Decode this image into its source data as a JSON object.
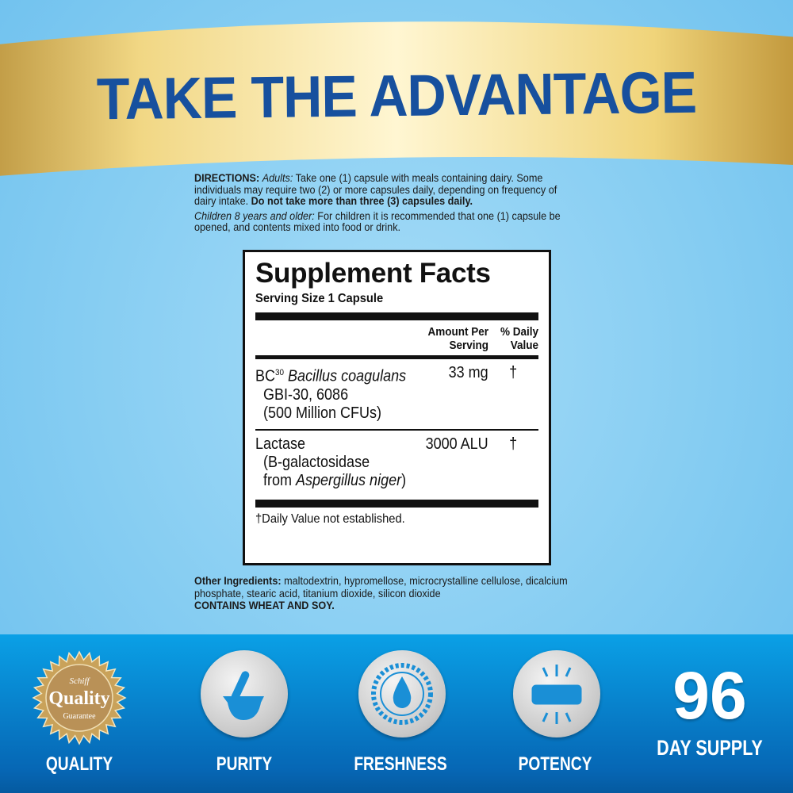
{
  "headline": "TAKE THE ADVANTAGE",
  "directions": {
    "label": "DIRECTIONS:",
    "adults_label": "Adults:",
    "adults_text": " Take one (1) capsule with meals containing dairy. Some individuals may require two (2) or more capsules daily, depending on frequency of dairy intake. ",
    "warning": "Do not take more than three (3) capsules daily.",
    "children_label": "Children 8 years and older:",
    "children_text": " For children it is recommended that one (1) capsule be opened, and contents mixed into food or drink."
  },
  "facts": {
    "title": "Supplement Facts",
    "serving": "Serving Size 1 Capsule",
    "col_amount": "Amount Per Serving",
    "col_dv": "% Daily Value",
    "rows": [
      {
        "prefix": "BC",
        "sup": "30",
        "italic": "Bacillus coagulans",
        "line2": "GBI-30, 6086",
        "line3": "(500 Million CFUs)",
        "amount": "33 mg",
        "dv": "†"
      },
      {
        "name": "Lactase",
        "line2": "(B-galactosidase",
        "line3_pre": "from ",
        "line3_italic": "Aspergillus niger",
        "line3_post": ")",
        "amount": "3000 ALU",
        "dv": "†"
      }
    ],
    "footnote": "†Daily Value not established."
  },
  "other": {
    "label": "Other Ingredients:",
    "text": " maltodextrin, hypromellose, microcrystalline cellulose, dicalcium phosphate, stearic acid, titanium dioxide, silicon dioxide",
    "allergen": "CONTAINS WHEAT AND SOY."
  },
  "seal": {
    "brand": "Schiff",
    "word": "Quality",
    "sub": "Guarantee"
  },
  "features": [
    {
      "label": "QUALITY",
      "icon": "quality-seal-icon"
    },
    {
      "label": "PURITY",
      "icon": "mortar-pestle-icon"
    },
    {
      "label": "FRESHNESS",
      "icon": "water-drop-icon"
    },
    {
      "label": "POTENCY",
      "icon": "capsule-glow-icon"
    }
  ],
  "supply": {
    "number": "96",
    "label": "DAY SUPPLY"
  },
  "colors": {
    "headline": "#17509e",
    "gold": "#e6c25a",
    "band": "#0667b5",
    "icon_blue": "#1a8fd6"
  }
}
